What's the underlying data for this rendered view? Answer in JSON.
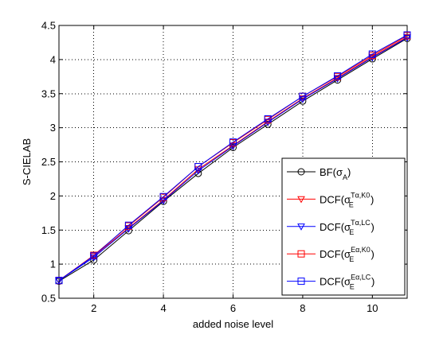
{
  "chart_data": {
    "type": "line",
    "title": "",
    "xlabel": "added noise level",
    "ylabel": "S-CIELAB",
    "xlim": [
      1,
      11
    ],
    "ylim": [
      0.5,
      4.5
    ],
    "xticks": [
      2,
      4,
      6,
      8,
      10
    ],
    "yticks": [
      0.5,
      1,
      1.5,
      2,
      2.5,
      3,
      3.5,
      4,
      4.5
    ],
    "xtick_labels": [
      "2",
      "4",
      "6",
      "8",
      "10"
    ],
    "ytick_labels": [
      "0.5",
      "1",
      "1.5",
      "2",
      "2.5",
      "3",
      "3.5",
      "4",
      "4.5"
    ],
    "grid": true,
    "legend_position": "bottom-right",
    "x": [
      1,
      2,
      3,
      4,
      5,
      6,
      7,
      8,
      9,
      10,
      11
    ],
    "series": [
      {
        "name": "BF(σ_A)",
        "legend": {
          "base": "BF(σ",
          "sub": "A",
          "sup": "",
          "close": ")"
        },
        "color": "#000000",
        "marker": "circle",
        "values": [
          0.75,
          1.06,
          1.49,
          1.92,
          2.33,
          2.71,
          3.05,
          3.39,
          3.7,
          4.01,
          4.31
        ]
      },
      {
        "name": "DCF(σ_E^{Tα,K0})",
        "legend": {
          "base": "DCF(σ",
          "sub": "E",
          "sup": "Tα,K0",
          "close": ")"
        },
        "color": "#ff0000",
        "marker": "triangle-down",
        "values": [
          0.76,
          1.12,
          1.53,
          1.94,
          2.39,
          2.74,
          3.09,
          3.43,
          3.73,
          4.04,
          4.33
        ]
      },
      {
        "name": "DCF(σ_E^{Tα,LC})",
        "legend": {
          "base": "DCF(σ",
          "sub": "E",
          "sup": "Tα,LC",
          "close": ")"
        },
        "color": "#0000ff",
        "marker": "triangle-down",
        "values": [
          0.76,
          1.1,
          1.52,
          1.93,
          2.37,
          2.73,
          3.08,
          3.42,
          3.72,
          4.03,
          4.32
        ]
      },
      {
        "name": "DCF(σ_E^{Eα,K0})",
        "legend": {
          "base": "DCF(σ",
          "sub": "E",
          "sup": "Eα,K0",
          "close": ")"
        },
        "color": "#ff0000",
        "marker": "square",
        "values": [
          0.76,
          1.13,
          1.56,
          1.98,
          2.43,
          2.78,
          3.12,
          3.46,
          3.75,
          4.06,
          4.35
        ]
      },
      {
        "name": "DCF(σ_E^{Eα,LC})",
        "legend": {
          "base": "DCF(σ",
          "sub": "E",
          "sup": "Eα,LC",
          "close": ")"
        },
        "color": "#0000ff",
        "marker": "square",
        "values": [
          0.76,
          1.12,
          1.57,
          1.99,
          2.43,
          2.79,
          3.13,
          3.46,
          3.76,
          4.08,
          4.36
        ]
      }
    ]
  }
}
